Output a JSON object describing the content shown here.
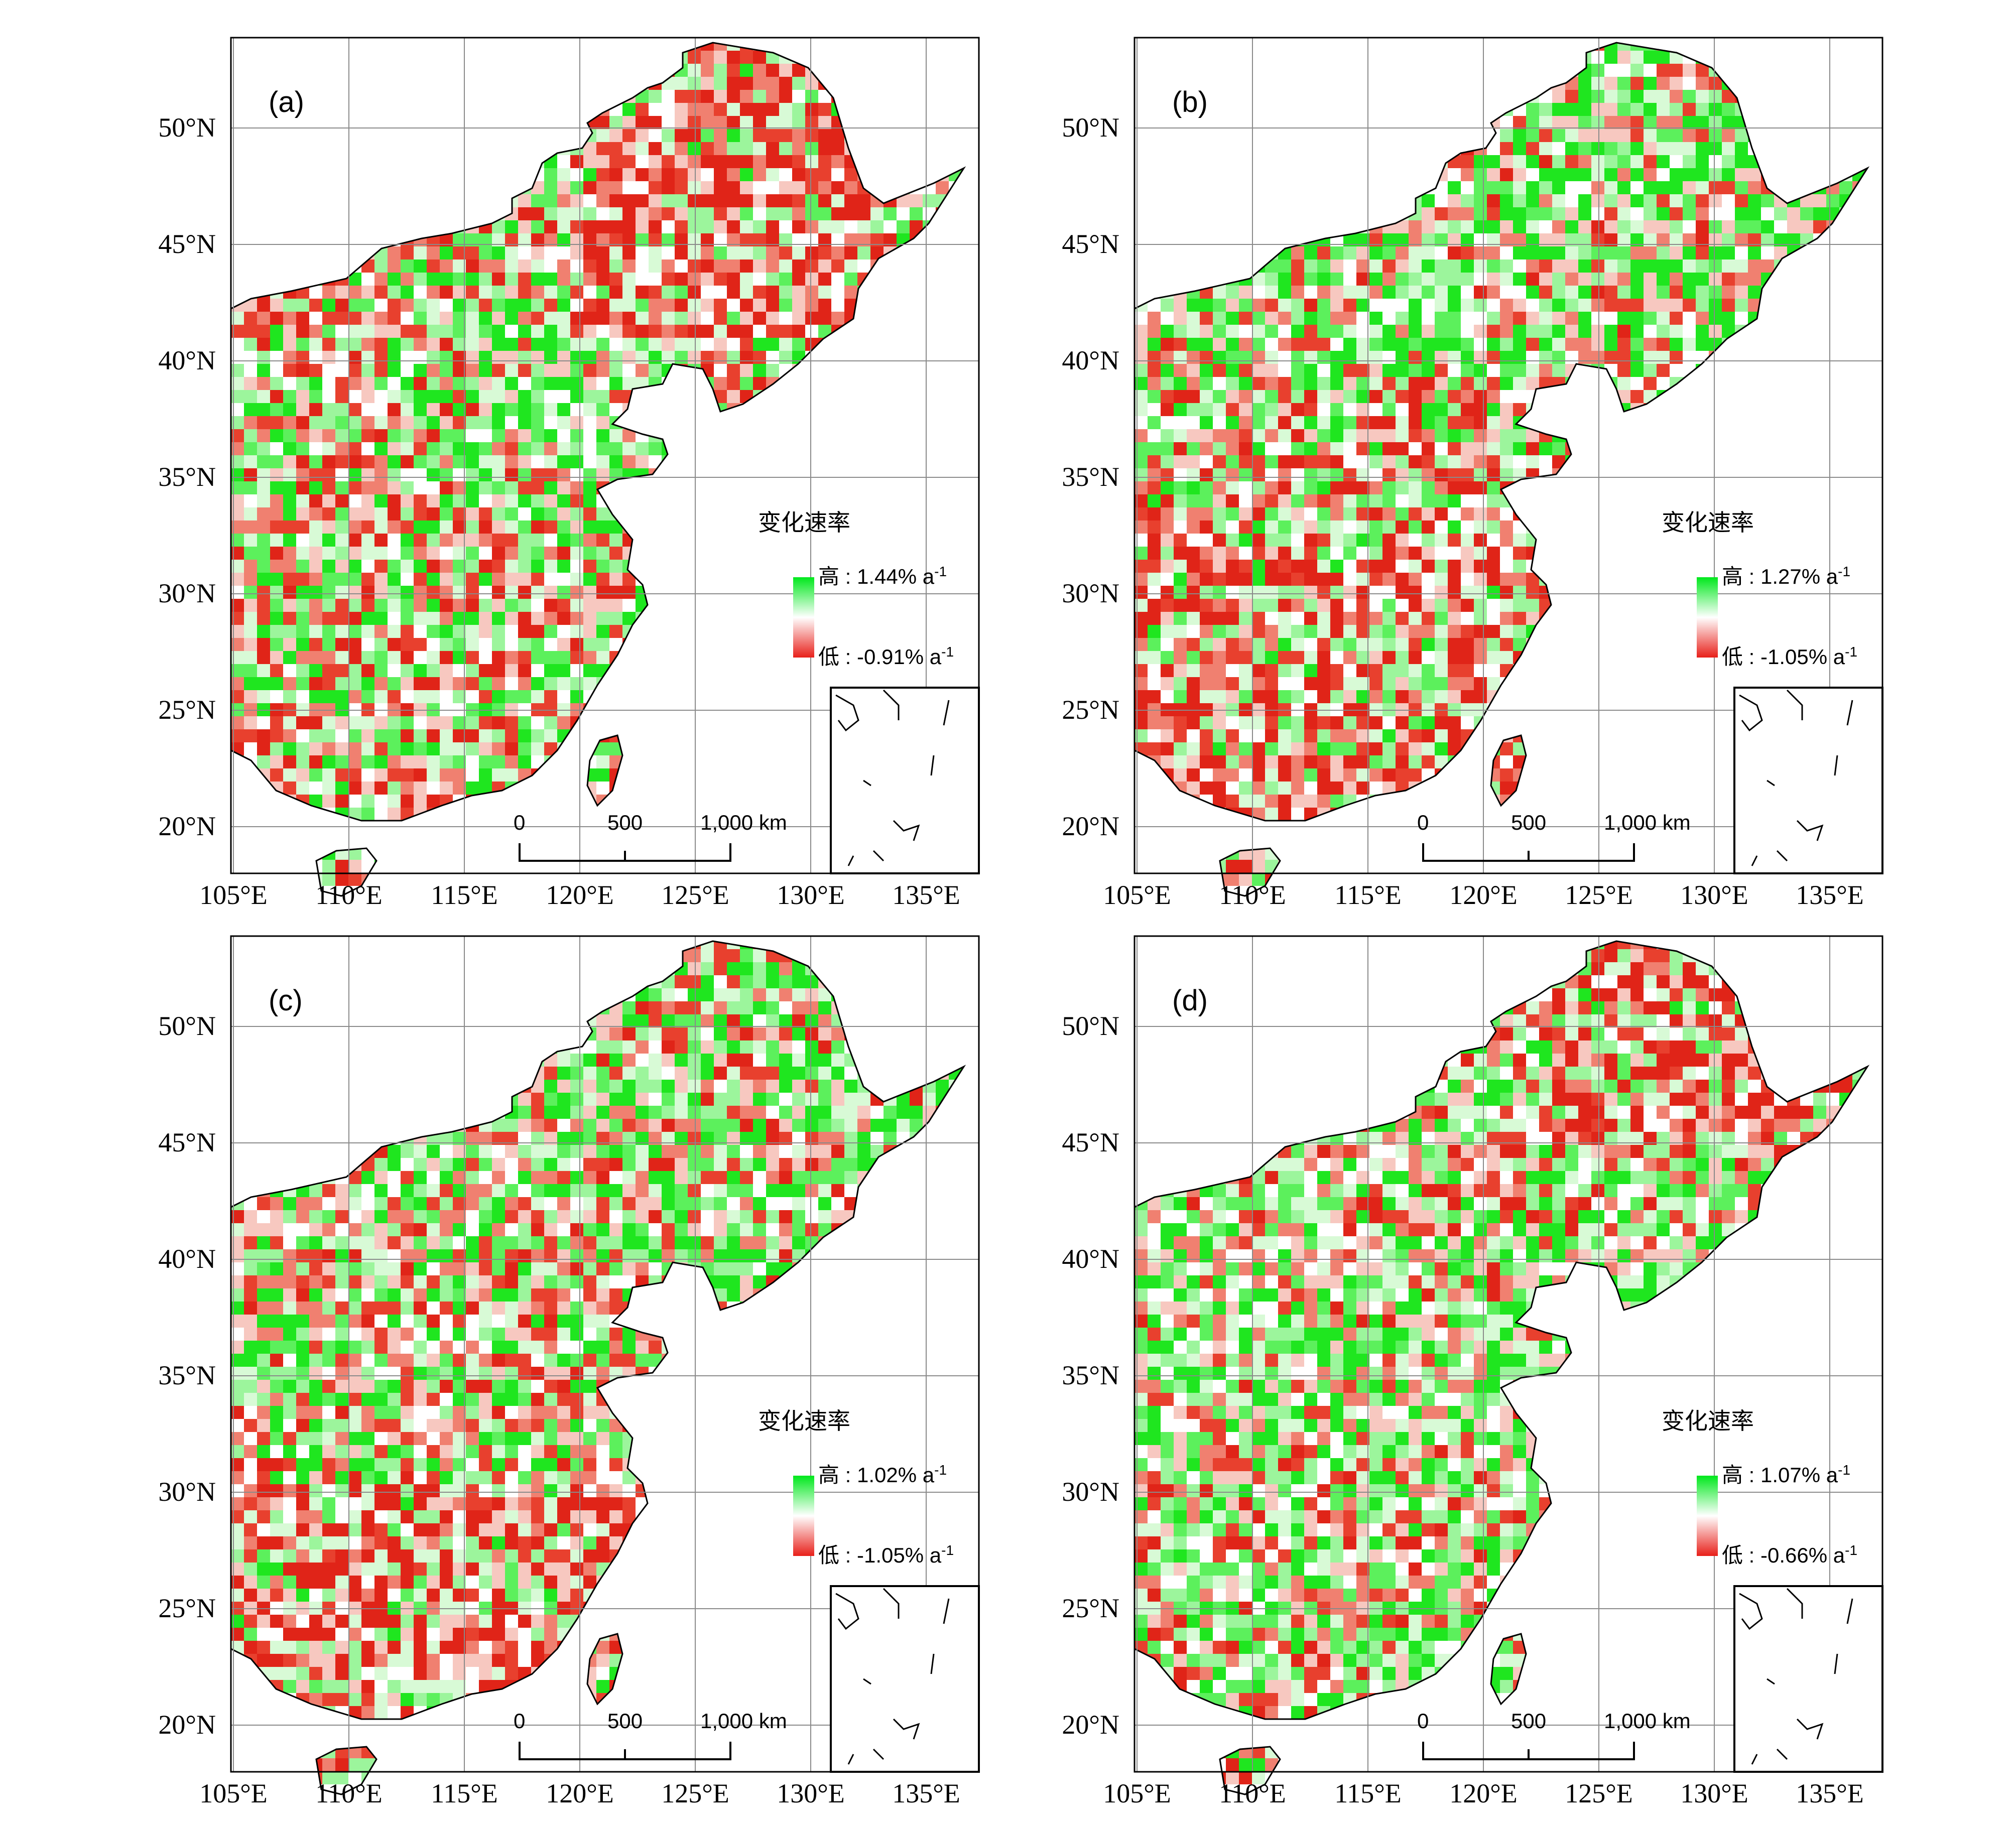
{
  "lat_ticks": [
    "50°N",
    "45°N",
    "40°N",
    "35°N",
    "30°N",
    "25°N",
    "20°N"
  ],
  "lon_ticks": [
    "105°E",
    "110°E",
    "115°E",
    "120°E",
    "125°E",
    "130°E",
    "135°E"
  ],
  "scale_bar": {
    "t0": "0",
    "t1": "500",
    "t2": "1,000 km"
  },
  "legend_title": "变化速率",
  "colors": {
    "high": "#00e81c",
    "mid": "#ffffff",
    "low": "#e8201a"
  },
  "panels": [
    {
      "label": "(a)",
      "high_prefix": "高 : ",
      "high_value": "1.44% a",
      "low_prefix": "低 : ",
      "low_value": "-0.91% a",
      "unit_sup": "-1"
    },
    {
      "label": "(b)",
      "high_prefix": "高 : ",
      "high_value": "1.27% a",
      "low_prefix": "低 : ",
      "low_value": "-1.05% a",
      "unit_sup": "-1"
    },
    {
      "label": "(c)",
      "high_prefix": "高 : ",
      "high_value": "1.02% a",
      "low_prefix": "低 : ",
      "low_value": "-1.05% a",
      "unit_sup": "-1"
    },
    {
      "label": "(d)",
      "high_prefix": "高 : ",
      "high_value": "1.07% a",
      "low_prefix": "低 : ",
      "low_value": "-0.66% a",
      "unit_sup": "-1"
    }
  ]
}
